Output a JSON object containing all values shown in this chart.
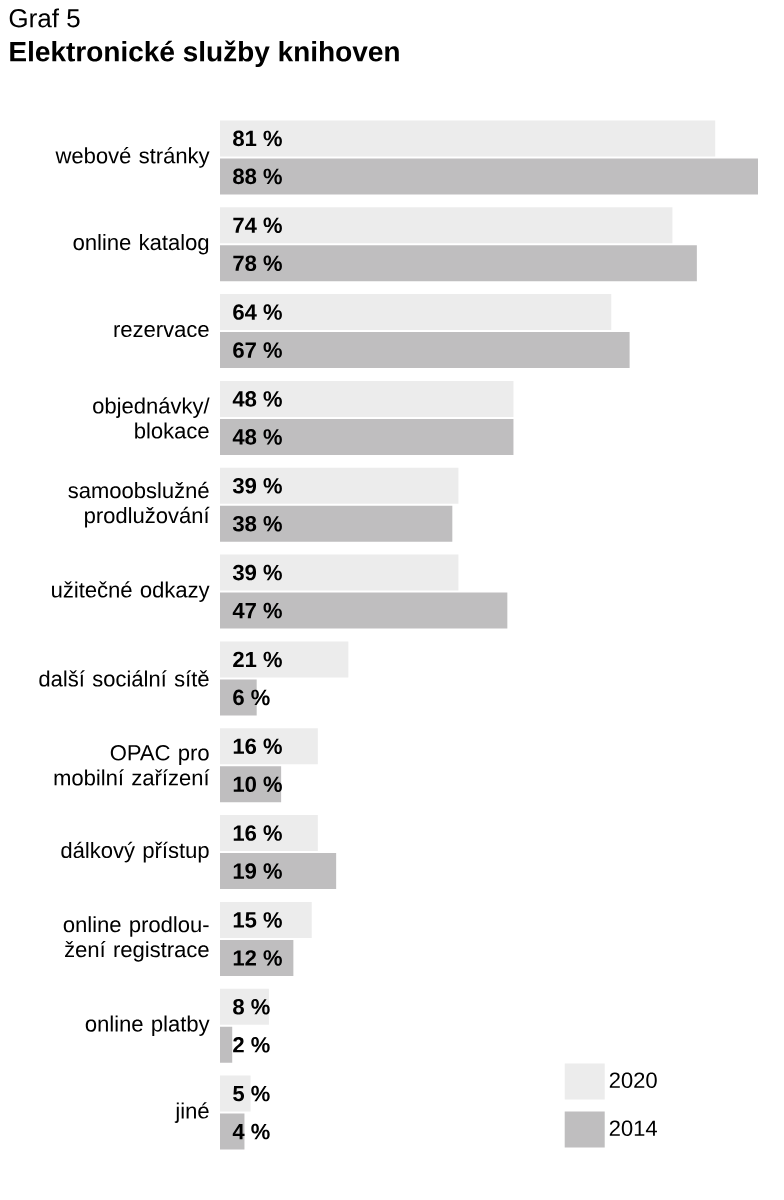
{
  "chart_data": {
    "type": "bar",
    "orientation": "horizontal",
    "title": "Graf 5",
    "subtitle": "Elektronické služby knihoven",
    "categories": [
      "webové stránky",
      "online katalog",
      "rezervace",
      "objednávky/ blokace",
      "samoobslužné prodlužování",
      "užitečné odkazy",
      "další sociální sítě",
      "OPAC pro mobilní zařízení",
      "dálkový přístup",
      "online prodlou-žení registrace",
      "online platby",
      "jiné"
    ],
    "series": [
      {
        "name": "2020",
        "color": "#ececec",
        "values": [
          81,
          74,
          64,
          48,
          39,
          39,
          21,
          16,
          16,
          15,
          8,
          5
        ],
        "value_labels": [
          "81 %",
          "74 %",
          "64 %",
          "48 %",
          "39 %",
          "39 %",
          "21 %",
          "16 %",
          "16 %",
          "15 %",
          "8 %",
          "5 %"
        ]
      },
      {
        "name": "2014",
        "color": "#bfbebf",
        "values": [
          88,
          78,
          67,
          48,
          38,
          47,
          6,
          10,
          19,
          12,
          2,
          4
        ],
        "value_labels": [
          "88 %",
          "78 %",
          "67 %",
          "48 %",
          "38 %",
          "47 %",
          "6 %",
          "10 %",
          "19 %",
          "12 %",
          "2 %",
          "4 %"
        ]
      }
    ],
    "legend": "bottom right"
  }
}
